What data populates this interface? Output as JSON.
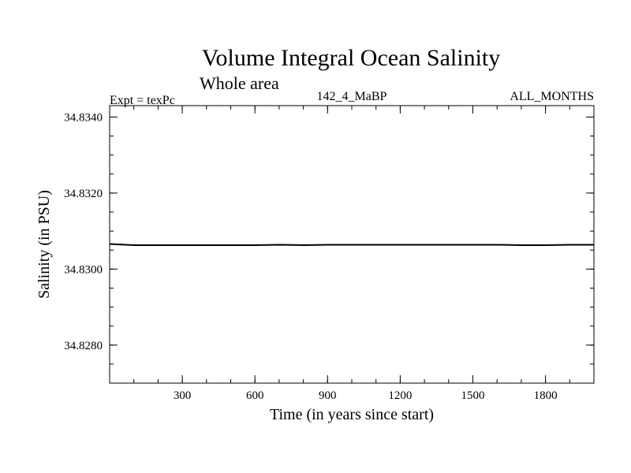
{
  "chart_data": {
    "type": "line",
    "title": "Volume Integral Ocean Salinity",
    "subtitle": "Whole area",
    "experiment_label": "Expt = texPc",
    "run_label": "142_4_MaBP",
    "period_label": "ALL_MONTHS",
    "xlabel": "Time (in years since start)",
    "ylabel": "Salinity (in PSU)",
    "xlim": [
      0,
      2000
    ],
    "ylim": [
      34.827,
      34.8343
    ],
    "x_ticks": [
      300,
      600,
      900,
      1200,
      1500,
      1800
    ],
    "x_tick_labels": [
      "300",
      "600",
      "900",
      "1200",
      "1500",
      "1800"
    ],
    "y_ticks": [
      34.828,
      34.83,
      34.832,
      34.834
    ],
    "y_tick_labels": [
      "34.8280",
      "34.8300",
      "34.8320",
      "34.8340"
    ],
    "x_minor_step": 100,
    "y_minor_step": 0.0005,
    "grid": false,
    "series": [
      {
        "name": "Salinity",
        "color": "#000000",
        "x": [
          0,
          100,
          200,
          300,
          400,
          500,
          600,
          700,
          800,
          900,
          1000,
          1100,
          1200,
          1300,
          1400,
          1500,
          1600,
          1700,
          1800,
          1900,
          2000
        ],
        "values": [
          34.83066,
          34.83063,
          34.83063,
          34.83063,
          34.83063,
          34.83063,
          34.83063,
          34.83064,
          34.83063,
          34.83064,
          34.83064,
          34.83064,
          34.83064,
          34.83064,
          34.83064,
          34.83064,
          34.83064,
          34.83063,
          34.83063,
          34.83064,
          34.83064
        ]
      }
    ]
  }
}
